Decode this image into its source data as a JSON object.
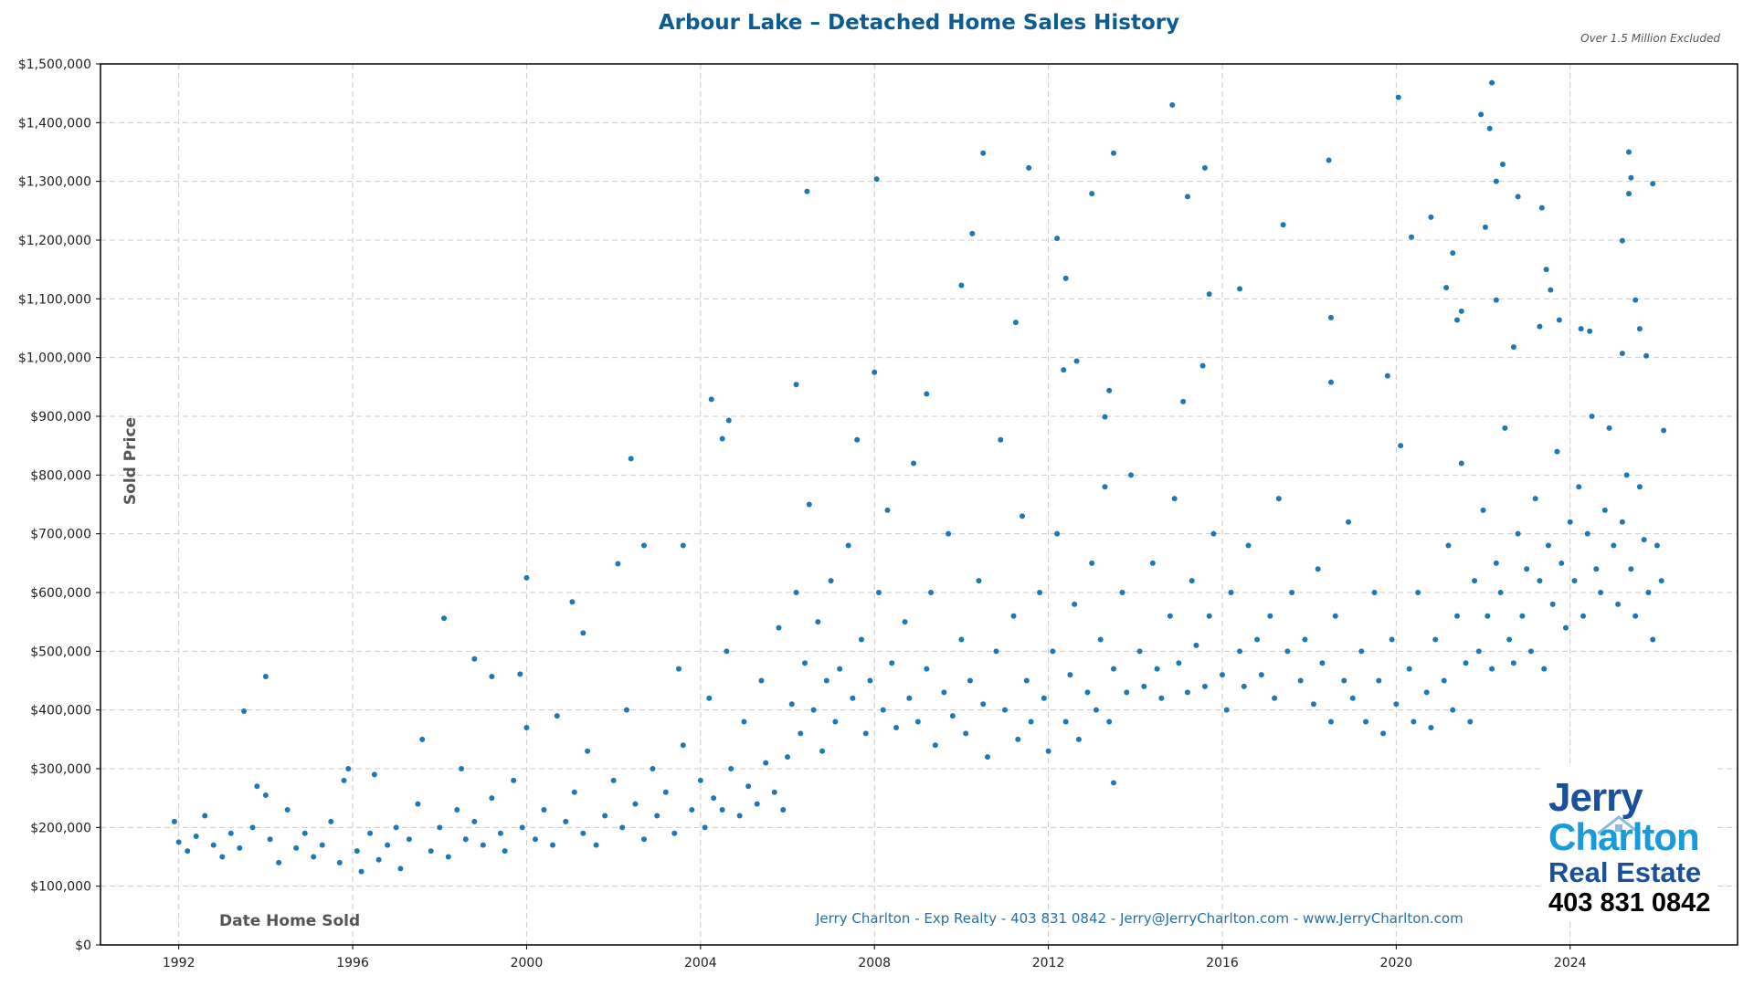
{
  "chart_data": {
    "type": "scatter",
    "title": "Arbour Lake – Detached Home Sales History",
    "note": "Over 1.5 Million Excluded",
    "xlabel": "Date Home Sold",
    "ylabel": "Sold Price",
    "xlim": [
      1990.2,
      2027.85
    ],
    "ylim": [
      0,
      1500000
    ],
    "x_ticks": [
      "1992",
      "1996",
      "2000",
      "2004",
      "2008",
      "2012",
      "2016",
      "2020",
      "2024"
    ],
    "y_ticks": [
      "$0",
      "$100,000",
      "$200,000",
      "$300,000",
      "$400,000",
      "$500,000",
      "$600,000",
      "$700,000",
      "$800,000",
      "$900,000",
      "$1,000,000",
      "$1,100,000",
      "$1,200,000",
      "$1,300,000",
      "$1,400,000",
      "$1,500,000"
    ],
    "grid": true,
    "marker_color": "#1f77b4",
    "points": [
      [
        1993.5,
        398000
      ],
      [
        1994.0,
        457000
      ],
      [
        1998.1,
        556000
      ],
      [
        1998.8,
        487000
      ],
      [
        1999.2,
        457000
      ],
      [
        1999.85,
        461000
      ],
      [
        2000.0,
        625000
      ],
      [
        2001.05,
        584000
      ],
      [
        2001.3,
        531000
      ],
      [
        2002.1,
        649000
      ],
      [
        2002.4,
        828000
      ],
      [
        2002.7,
        680000
      ],
      [
        2003.6,
        680000
      ],
      [
        2004.25,
        929000
      ],
      [
        2004.65,
        893000
      ],
      [
        2004.5,
        862000
      ],
      [
        2006.2,
        954000
      ],
      [
        2006.45,
        1283000
      ],
      [
        2008.05,
        1304000
      ],
      [
        2008.0,
        975000
      ],
      [
        2009.2,
        938000
      ],
      [
        2010.0,
        1123000
      ],
      [
        2010.25,
        1211000
      ],
      [
        2010.5,
        1348000
      ],
      [
        2011.25,
        1060000
      ],
      [
        2011.55,
        1323000
      ],
      [
        2012.2,
        1203000
      ],
      [
        2012.4,
        1135000
      ],
      [
        2012.65,
        994000
      ],
      [
        2012.35,
        979000
      ],
      [
        2013.0,
        1279000
      ],
      [
        2013.5,
        1348000
      ],
      [
        2013.4,
        944000
      ],
      [
        2013.3,
        899000
      ],
      [
        2013.5,
        276000
      ],
      [
        2014.85,
        1430000
      ],
      [
        2015.2,
        1274000
      ],
      [
        2015.1,
        925000
      ],
      [
        2015.55,
        986000
      ],
      [
        2015.6,
        1323000
      ],
      [
        2015.7,
        1108000
      ],
      [
        2016.4,
        1117000
      ],
      [
        2017.4,
        1226000
      ],
      [
        2018.45,
        1336000
      ],
      [
        2018.5,
        1068000
      ],
      [
        2018.5,
        958000
      ],
      [
        2019.8,
        969000
      ],
      [
        2020.05,
        1443000
      ],
      [
        2020.35,
        1205000
      ],
      [
        2020.8,
        1239000
      ],
      [
        2021.15,
        1119000
      ],
      [
        2021.3,
        1178000
      ],
      [
        2021.4,
        1064000
      ],
      [
        2021.5,
        1079000
      ],
      [
        2021.95,
        1414000
      ],
      [
        2022.2,
        1468000
      ],
      [
        2022.15,
        1390000
      ],
      [
        2022.05,
        1222000
      ],
      [
        2022.3,
        1300000
      ],
      [
        2022.45,
        1329000
      ],
      [
        2022.3,
        1098000
      ],
      [
        2022.8,
        1274000
      ],
      [
        2022.7,
        1018000
      ],
      [
        2023.35,
        1255000
      ],
      [
        2023.45,
        1150000
      ],
      [
        2023.55,
        1115000
      ],
      [
        2023.75,
        1064000
      ],
      [
        2023.3,
        1053000
      ],
      [
        2024.25,
        1049000
      ],
      [
        2024.45,
        1045000
      ],
      [
        2025.2,
        1199000
      ],
      [
        2025.35,
        1350000
      ],
      [
        2025.4,
        1306000
      ],
      [
        2025.35,
        1279000
      ],
      [
        2025.9,
        1296000
      ],
      [
        2025.5,
        1098000
      ],
      [
        2025.6,
        1049000
      ],
      [
        2025.75,
        1003000
      ],
      [
        2026.15,
        876000
      ],
      [
        2025.2,
        1007000
      ],
      [
        1991.9,
        210000
      ],
      [
        1992.0,
        175000
      ],
      [
        1992.2,
        160000
      ],
      [
        1992.4,
        185000
      ],
      [
        1992.6,
        220000
      ],
      [
        1992.8,
        170000
      ],
      [
        1993.0,
        150000
      ],
      [
        1993.2,
        190000
      ],
      [
        1993.4,
        165000
      ],
      [
        1993.7,
        200000
      ],
      [
        1993.8,
        270000
      ],
      [
        1994.0,
        255000
      ],
      [
        1994.1,
        180000
      ],
      [
        1994.3,
        140000
      ],
      [
        1994.5,
        230000
      ],
      [
        1994.7,
        165000
      ],
      [
        1994.9,
        190000
      ],
      [
        1995.1,
        150000
      ],
      [
        1995.3,
        170000
      ],
      [
        1995.5,
        210000
      ],
      [
        1995.7,
        140000
      ],
      [
        1995.8,
        280000
      ],
      [
        1995.9,
        300000
      ],
      [
        1996.1,
        160000
      ],
      [
        1996.2,
        125000
      ],
      [
        1996.4,
        190000
      ],
      [
        1996.5,
        290000
      ],
      [
        1996.6,
        145000
      ],
      [
        1996.8,
        170000
      ],
      [
        1997.0,
        200000
      ],
      [
        1997.1,
        130000
      ],
      [
        1997.3,
        180000
      ],
      [
        1997.5,
        240000
      ],
      [
        1997.6,
        350000
      ],
      [
        1997.8,
        160000
      ],
      [
        1998.0,
        200000
      ],
      [
        1998.2,
        150000
      ],
      [
        1998.4,
        230000
      ],
      [
        1998.5,
        300000
      ],
      [
        1998.6,
        180000
      ],
      [
        1998.8,
        210000
      ],
      [
        1999.0,
        170000
      ],
      [
        1999.2,
        250000
      ],
      [
        1999.4,
        190000
      ],
      [
        1999.5,
        160000
      ],
      [
        1999.7,
        280000
      ],
      [
        1999.9,
        200000
      ],
      [
        2000.0,
        370000
      ],
      [
        2000.2,
        180000
      ],
      [
        2000.4,
        230000
      ],
      [
        2000.6,
        170000
      ],
      [
        2000.7,
        390000
      ],
      [
        2000.9,
        210000
      ],
      [
        2001.1,
        260000
      ],
      [
        2001.3,
        190000
      ],
      [
        2001.4,
        330000
      ],
      [
        2001.6,
        170000
      ],
      [
        2001.8,
        220000
      ],
      [
        2002.0,
        280000
      ],
      [
        2002.2,
        200000
      ],
      [
        2002.3,
        400000
      ],
      [
        2002.5,
        240000
      ],
      [
        2002.7,
        180000
      ],
      [
        2002.9,
        300000
      ],
      [
        2003.0,
        220000
      ],
      [
        2003.2,
        260000
      ],
      [
        2003.4,
        190000
      ],
      [
        2003.5,
        470000
      ],
      [
        2003.6,
        340000
      ],
      [
        2003.8,
        230000
      ],
      [
        2004.0,
        280000
      ],
      [
        2004.1,
        200000
      ],
      [
        2004.2,
        420000
      ],
      [
        2004.3,
        250000
      ],
      [
        2004.5,
        230000
      ],
      [
        2004.6,
        500000
      ],
      [
        2004.7,
        300000
      ],
      [
        2004.9,
        220000
      ],
      [
        2005.0,
        380000
      ],
      [
        2005.1,
        270000
      ],
      [
        2005.3,
        240000
      ],
      [
        2005.4,
        450000
      ],
      [
        2005.5,
        310000
      ],
      [
        2005.7,
        260000
      ],
      [
        2005.8,
        540000
      ],
      [
        2005.9,
        230000
      ],
      [
        2006.0,
        320000
      ],
      [
        2006.1,
        410000
      ],
      [
        2006.2,
        600000
      ],
      [
        2006.3,
        360000
      ],
      [
        2006.4,
        480000
      ],
      [
        2006.5,
        750000
      ],
      [
        2006.6,
        400000
      ],
      [
        2006.7,
        550000
      ],
      [
        2006.8,
        330000
      ],
      [
        2006.9,
        450000
      ],
      [
        2007.0,
        620000
      ],
      [
        2007.1,
        380000
      ],
      [
        2007.2,
        470000
      ],
      [
        2007.4,
        680000
      ],
      [
        2007.5,
        420000
      ],
      [
        2007.6,
        860000
      ],
      [
        2007.7,
        520000
      ],
      [
        2007.8,
        360000
      ],
      [
        2007.9,
        450000
      ],
      [
        2008.1,
        600000
      ],
      [
        2008.2,
        400000
      ],
      [
        2008.3,
        740000
      ],
      [
        2008.4,
        480000
      ],
      [
        2008.5,
        370000
      ],
      [
        2008.7,
        550000
      ],
      [
        2008.8,
        420000
      ],
      [
        2008.9,
        820000
      ],
      [
        2009.0,
        380000
      ],
      [
        2009.2,
        470000
      ],
      [
        2009.3,
        600000
      ],
      [
        2009.4,
        340000
      ],
      [
        2009.6,
        430000
      ],
      [
        2009.7,
        700000
      ],
      [
        2009.8,
        390000
      ],
      [
        2010.0,
        520000
      ],
      [
        2010.1,
        360000
      ],
      [
        2010.2,
        450000
      ],
      [
        2010.4,
        620000
      ],
      [
        2010.5,
        410000
      ],
      [
        2010.6,
        320000
      ],
      [
        2010.8,
        500000
      ],
      [
        2010.9,
        860000
      ],
      [
        2011.0,
        400000
      ],
      [
        2011.2,
        560000
      ],
      [
        2011.3,
        350000
      ],
      [
        2011.4,
        730000
      ],
      [
        2011.5,
        450000
      ],
      [
        2011.6,
        380000
      ],
      [
        2011.8,
        600000
      ],
      [
        2011.9,
        420000
      ],
      [
        2012.0,
        330000
      ],
      [
        2012.1,
        500000
      ],
      [
        2012.2,
        700000
      ],
      [
        2012.4,
        380000
      ],
      [
        2012.5,
        460000
      ],
      [
        2012.6,
        580000
      ],
      [
        2012.7,
        350000
      ],
      [
        2012.9,
        430000
      ],
      [
        2013.0,
        650000
      ],
      [
        2013.1,
        400000
      ],
      [
        2013.2,
        520000
      ],
      [
        2013.3,
        780000
      ],
      [
        2013.4,
        380000
      ],
      [
        2013.5,
        470000
      ],
      [
        2013.7,
        600000
      ],
      [
        2013.8,
        430000
      ],
      [
        2013.9,
        800000
      ],
      [
        2014.1,
        500000
      ],
      [
        2014.2,
        440000
      ],
      [
        2014.4,
        650000
      ],
      [
        2014.5,
        470000
      ],
      [
        2014.6,
        420000
      ],
      [
        2014.8,
        560000
      ],
      [
        2014.9,
        760000
      ],
      [
        2015.0,
        480000
      ],
      [
        2015.2,
        430000
      ],
      [
        2015.3,
        620000
      ],
      [
        2015.4,
        510000
      ],
      [
        2015.6,
        440000
      ],
      [
        2015.7,
        560000
      ],
      [
        2015.8,
        700000
      ],
      [
        2016.0,
        460000
      ],
      [
        2016.1,
        400000
      ],
      [
        2016.2,
        600000
      ],
      [
        2016.4,
        500000
      ],
      [
        2016.5,
        440000
      ],
      [
        2016.6,
        680000
      ],
      [
        2016.8,
        520000
      ],
      [
        2016.9,
        460000
      ],
      [
        2017.1,
        560000
      ],
      [
        2017.2,
        420000
      ],
      [
        2017.3,
        760000
      ],
      [
        2017.5,
        500000
      ],
      [
        2017.6,
        600000
      ],
      [
        2017.8,
        450000
      ],
      [
        2017.9,
        520000
      ],
      [
        2018.1,
        410000
      ],
      [
        2018.2,
        640000
      ],
      [
        2018.3,
        480000
      ],
      [
        2018.5,
        380000
      ],
      [
        2018.6,
        560000
      ],
      [
        2018.8,
        450000
      ],
      [
        2018.9,
        720000
      ],
      [
        2019.0,
        420000
      ],
      [
        2019.2,
        500000
      ],
      [
        2019.3,
        380000
      ],
      [
        2019.5,
        600000
      ],
      [
        2019.6,
        450000
      ],
      [
        2019.7,
        360000
      ],
      [
        2019.9,
        520000
      ],
      [
        2020.0,
        410000
      ],
      [
        2020.1,
        850000
      ],
      [
        2020.3,
        470000
      ],
      [
        2020.4,
        380000
      ],
      [
        2020.5,
        600000
      ],
      [
        2020.7,
        430000
      ],
      [
        2020.8,
        370000
      ],
      [
        2020.9,
        520000
      ],
      [
        2021.1,
        450000
      ],
      [
        2021.2,
        680000
      ],
      [
        2021.3,
        400000
      ],
      [
        2021.4,
        560000
      ],
      [
        2021.5,
        820000
      ],
      [
        2021.6,
        480000
      ],
      [
        2021.7,
        380000
      ],
      [
        2021.8,
        620000
      ],
      [
        2021.9,
        500000
      ],
      [
        2022.0,
        740000
      ],
      [
        2022.1,
        560000
      ],
      [
        2022.2,
        470000
      ],
      [
        2022.3,
        650000
      ],
      [
        2022.4,
        600000
      ],
      [
        2022.5,
        880000
      ],
      [
        2022.6,
        520000
      ],
      [
        2022.7,
        480000
      ],
      [
        2022.8,
        700000
      ],
      [
        2022.9,
        560000
      ],
      [
        2023.0,
        640000
      ],
      [
        2023.1,
        500000
      ],
      [
        2023.2,
        760000
      ],
      [
        2023.3,
        620000
      ],
      [
        2023.4,
        470000
      ],
      [
        2023.5,
        680000
      ],
      [
        2023.6,
        580000
      ],
      [
        2023.7,
        840000
      ],
      [
        2023.8,
        650000
      ],
      [
        2023.9,
        540000
      ],
      [
        2024.0,
        720000
      ],
      [
        2024.1,
        620000
      ],
      [
        2024.2,
        780000
      ],
      [
        2024.3,
        560000
      ],
      [
        2024.4,
        700000
      ],
      [
        2024.5,
        900000
      ],
      [
        2024.6,
        640000
      ],
      [
        2024.7,
        600000
      ],
      [
        2024.8,
        740000
      ],
      [
        2024.9,
        880000
      ],
      [
        2025.0,
        680000
      ],
      [
        2025.1,
        580000
      ],
      [
        2025.2,
        720000
      ],
      [
        2025.3,
        800000
      ],
      [
        2025.4,
        640000
      ],
      [
        2025.5,
        560000
      ],
      [
        2025.6,
        780000
      ],
      [
        2025.7,
        690000
      ],
      [
        2025.8,
        600000
      ],
      [
        2025.9,
        520000
      ],
      [
        2026.0,
        680000
      ],
      [
        2026.1,
        620000
      ]
    ]
  },
  "footer": "Jerry Charlton - Exp Realty - 403 831 0842 - Jerry@JerryCharlton.com - www.JerryCharlton.com",
  "logo": {
    "line1": "Jerry",
    "line2": "Charlton",
    "line3": "Real Estate",
    "phone": "403 831 0842"
  }
}
